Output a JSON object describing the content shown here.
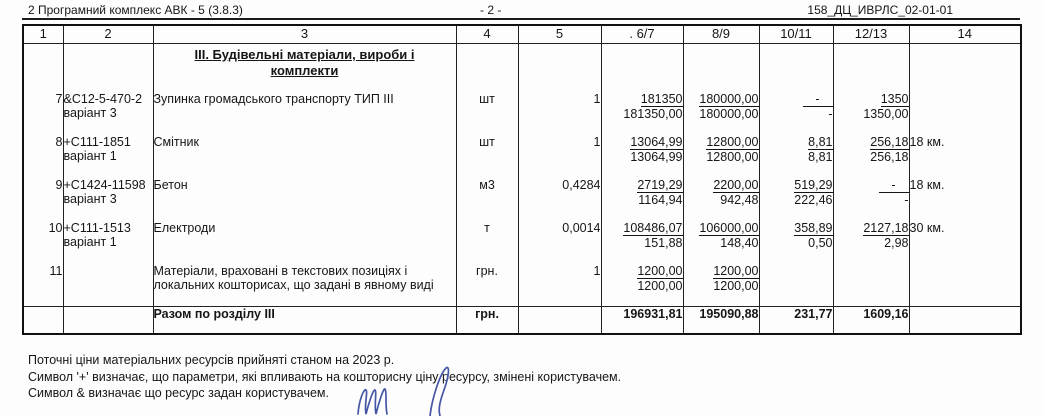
{
  "page_header": {
    "left": "2 Програмний комплекс АВК - 5 (3.8.3)",
    "center": "- 2 -",
    "right": "158_ДЦ_ИВРЛС_02-01-01"
  },
  "table": {
    "column_numbers": [
      "1",
      "2",
      "3",
      "4",
      "5",
      ". 6/7",
      "8/9",
      "10/11",
      "12/13",
      "14"
    ],
    "section_title_line1": "III. Будівельні матеріали, вироби і",
    "section_title_line2": "комплекти",
    "rows": [
      {
        "num": "7",
        "code": "&С12-5-470-2",
        "variant": "варіант 3",
        "name": "Зупинка громадського транспорту ТИП III",
        "unit": "шт",
        "qty": "1",
        "c67_top": "181350",
        "c67_bot": "181350,00",
        "c89_top": "180000,00",
        "c89_bot": "180000,00",
        "c1011_top": "-",
        "c1011_bot": "-",
        "c1213_top": "1350",
        "c1213_bot": "1350,00",
        "note": ""
      },
      {
        "num": "8",
        "code": "+С111-1851",
        "variant": "варіант 1",
        "name": "Смітник",
        "unit": "шт",
        "qty": "1",
        "c67_top": "13064,99",
        "c67_bot": "13064,99",
        "c89_top": "12800,00",
        "c89_bot": "12800,00",
        "c1011_top": "8,81",
        "c1011_bot": "8,81",
        "c1213_top": "256,18",
        "c1213_bot": "256,18",
        "note": "18 км."
      },
      {
        "num": "9",
        "code": "+С1424-11598",
        "variant": "варіант 3",
        "name": "Бетон",
        "unit": "м3",
        "qty": "0,4284",
        "c67_top": "2719,29",
        "c67_bot": "1164,94",
        "c89_top": "2200,00",
        "c89_bot": "942,48",
        "c1011_top": "519,29",
        "c1011_bot": "222,46",
        "c1213_top": "-",
        "c1213_bot": "-",
        "note": "18 км."
      },
      {
        "num": "10",
        "code": "+С111-1513",
        "variant": "варіант 1",
        "name": "Електроди",
        "unit": "т",
        "qty": "0,0014",
        "c67_top": "108486,07",
        "c67_bot": "151,88",
        "c89_top": "106000,00",
        "c89_bot": "148,40",
        "c1011_top": "358,89",
        "c1011_bot": "0,50",
        "c1213_top": "2127,18",
        "c1213_bot": "2,98",
        "note": "30 км."
      },
      {
        "num": "11",
        "code": "",
        "variant": "",
        "name": "Матеріали, враховані в текстових позиціях і локальних кошторисах, що задані в явному виді",
        "unit": "грн.",
        "qty": "1",
        "c67_top": "1200,00",
        "c67_bot": "1200,00",
        "c89_top": "1200,00",
        "c89_bot": "1200,00",
        "c1011_top": "",
        "c1011_bot": "",
        "c1213_top": "",
        "c1213_bot": "",
        "note": ""
      }
    ],
    "total": {
      "label": "Разом по розділу III",
      "unit": "грн.",
      "c67": "196931,81",
      "c89": "195090,88",
      "c1011": "231,77",
      "c1213": "1609,16"
    }
  },
  "footnotes": [
    "Поточні ціни матеріальних ресурсів прийняті станом на 2023 р.",
    "Символ '+' визначає, що параметри, які впливають на кошторисну ціну ресурсу, змінені користувачем.",
    "Символ & визначає що ресурс задан користувачем."
  ],
  "signature": {
    "ink_color": "#4656a6"
  }
}
